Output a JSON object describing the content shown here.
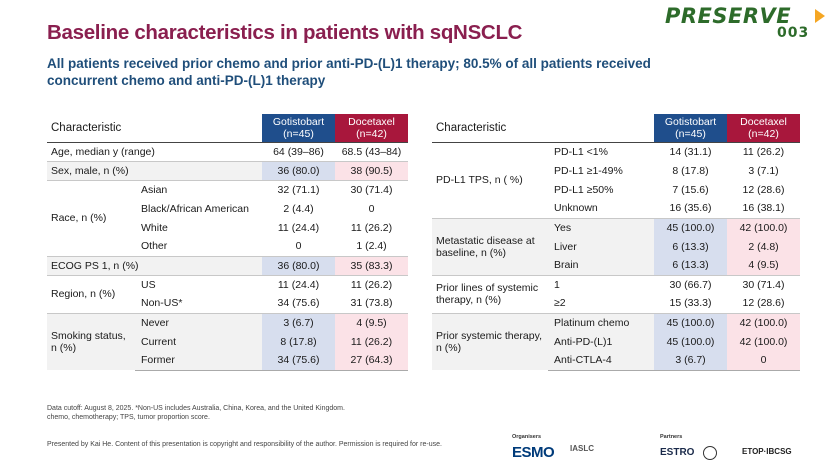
{
  "slide": {
    "title": "Baseline characteristics in patients with sqNSCLC",
    "subtitle": "All patients received prior chemo and prior anti-PD-(L)1 therapy; 80.5% of all patients received concurrent chemo and anti-PD-(L)1 therapy",
    "logo": {
      "word": "PRESERVE",
      "number": "003"
    }
  },
  "left_table": {
    "header": {
      "characteristic": "Characteristic",
      "g_name": "Gotistobart",
      "g_n": "(n=45)",
      "d_name": "Docetaxel",
      "d_n": "(n=42)"
    },
    "age": {
      "label": "Age, median y (range)",
      "g": "64 (39–86)",
      "d": "68.5 (43–84)"
    },
    "sex": {
      "label": "Sex, male, n (%)",
      "g": "36 (80.0)",
      "d": "38 (90.5)"
    },
    "race": {
      "label": "Race, n (%)",
      "rows": [
        {
          "sub": "Asian",
          "g": "32 (71.1)",
          "d": "30 (71.4)"
        },
        {
          "sub": "Black/African American",
          "g": "2 (4.4)",
          "d": "0"
        },
        {
          "sub": "White",
          "g": "11 (24.4)",
          "d": "11 (26.2)"
        },
        {
          "sub": "Other",
          "g": "0",
          "d": "1 (2.4)"
        }
      ]
    },
    "ecog": {
      "label": "ECOG PS 1, n (%)",
      "g": "36 (80.0)",
      "d": "35 (83.3)"
    },
    "region": {
      "label": "Region, n (%)",
      "rows": [
        {
          "sub": "US",
          "g": "11 (24.4)",
          "d": "11 (26.2)"
        },
        {
          "sub": "Non-US*",
          "g": "34 (75.6)",
          "d": "31 (73.8)"
        }
      ]
    },
    "smoking": {
      "label_line1": "Smoking status,",
      "label_line2": "n (%)",
      "rows": [
        {
          "sub": "Never",
          "g": "3 (6.7)",
          "d": "4 (9.5)"
        },
        {
          "sub": "Current",
          "g": "8 (17.8)",
          "d": "11 (26.2)"
        },
        {
          "sub": "Former",
          "g": "34 (75.6)",
          "d": "27 (64.3)"
        }
      ]
    }
  },
  "right_table": {
    "header": {
      "characteristic": "Characteristic",
      "g_name": "Gotistobart",
      "g_n": "(n=45)",
      "d_name": "Docetaxel",
      "d_n": "(n=42)"
    },
    "pdl1": {
      "label": "PD-L1 TPS, n ( %)",
      "rows": [
        {
          "sub": "PD-L1 <1%",
          "g": "14 (31.1)",
          "d": "11 (26.2)"
        },
        {
          "sub": "PD-L1 ≥1-49%",
          "g": "8 (17.8)",
          "d": "3 (7.1)"
        },
        {
          "sub": "PD-L1 ≥50%",
          "g": "7 (15.6)",
          "d": "12 (28.6)"
        },
        {
          "sub": "Unknown",
          "g": "16 (35.6)",
          "d": "16 (38.1)"
        }
      ]
    },
    "metastatic": {
      "label_line1": "Metastatic disease at",
      "label_line2": "baseline, n (%)",
      "rows": [
        {
          "sub": "Yes",
          "g": "45 (100.0)",
          "d": "42 (100.0)"
        },
        {
          "sub": "Liver",
          "g": "6 (13.3)",
          "d": "2 (4.8)"
        },
        {
          "sub": "Brain",
          "g": "6 (13.3)",
          "d": "4 (9.5)"
        }
      ]
    },
    "lines": {
      "label_line1": "Prior lines of systemic",
      "label_line2": "therapy, n (%)",
      "rows": [
        {
          "sub": "1",
          "g": "30 (66.7)",
          "d": "30 (71.4)"
        },
        {
          "sub": "≥2",
          "g": "15 (33.3)",
          "d": "12 (28.6)"
        }
      ]
    },
    "systemic": {
      "label_line1": "Prior systemic therapy,",
      "label_line2": "n (%)",
      "rows": [
        {
          "sub": "Platinum chemo",
          "g": "45 (100.0)",
          "d": "42 (100.0)"
        },
        {
          "sub": "Anti-PD-(L)1",
          "g": "45 (100.0)",
          "d": "42 (100.0)"
        },
        {
          "sub": "Anti-CTLA-4",
          "g": "3 (6.7)",
          "d": "0"
        }
      ]
    }
  },
  "footnotes": {
    "line1": "Data cutoff: August 8, 2025. *Non-US includes Australia, China, Korea, and the United Kingdom.",
    "line2": "chemo, chemotherapy; TPS, tumor proportion score.",
    "presenter": "Presented by Kai He. Content of this presentation is copyright and responsibility of the author. Permission is required for re-use."
  },
  "sponsors": {
    "organisers_label": "Organisers",
    "partners_label": "Partners",
    "esmo": "ESMO",
    "iaslc": "IASLC",
    "estro": "ESTRO",
    "etop": "ETOP·IBCSG"
  }
}
